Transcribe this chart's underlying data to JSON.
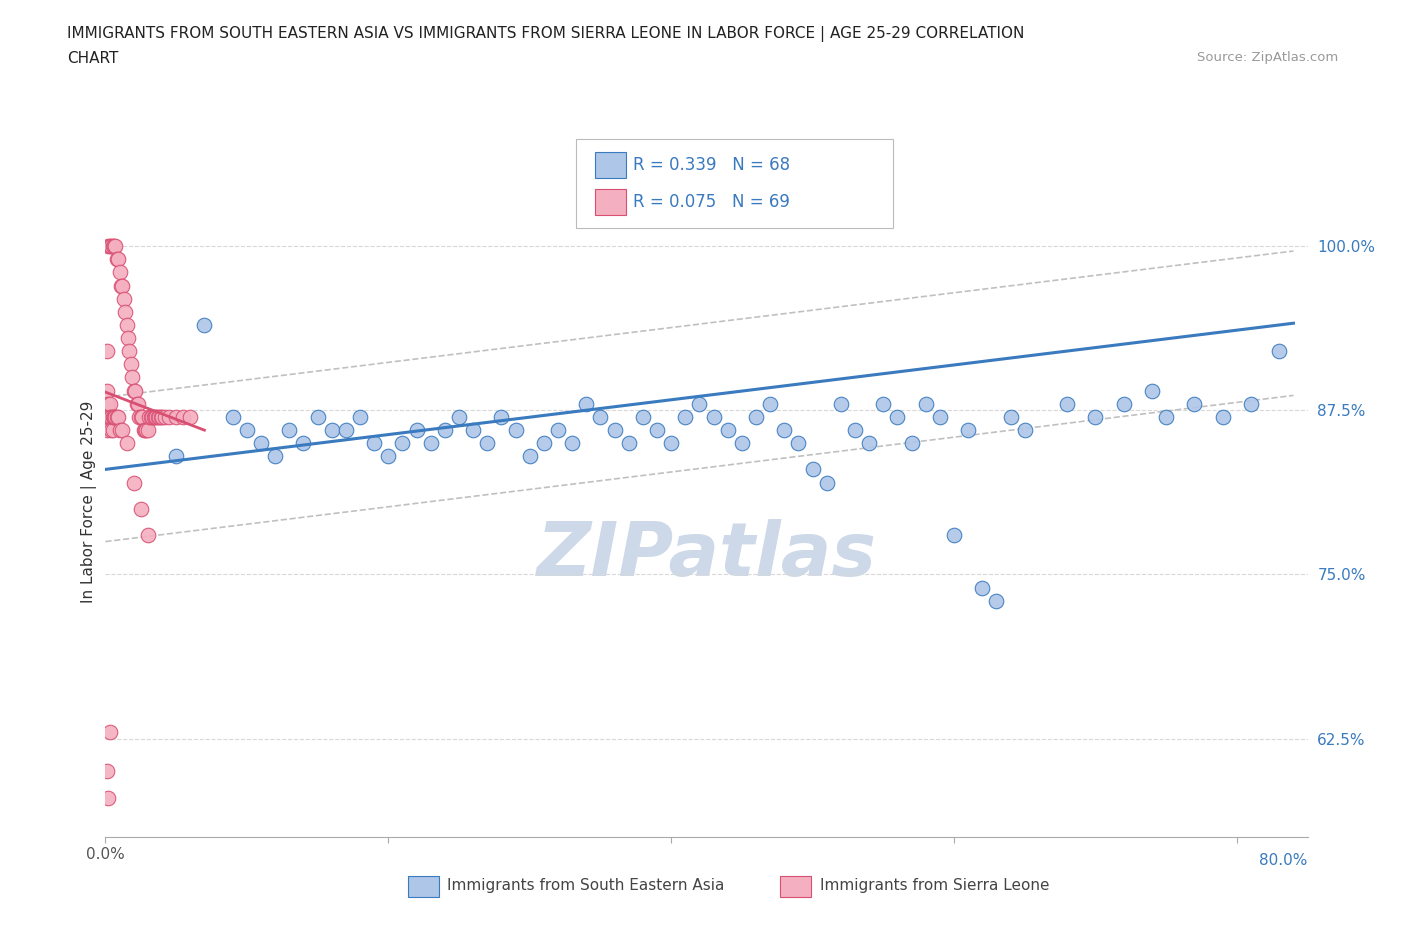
{
  "title_line1": "IMMIGRANTS FROM SOUTH EASTERN ASIA VS IMMIGRANTS FROM SIERRA LEONE IN LABOR FORCE | AGE 25-29 CORRELATION",
  "title_line2": "CHART",
  "source_text": "Source: ZipAtlas.com",
  "ylabel": "In Labor Force | Age 25-29",
  "xlim": [
    0.0,
    0.85
  ],
  "ylim": [
    0.55,
    1.06
  ],
  "r_blue": 0.339,
  "n_blue": 68,
  "r_pink": 0.075,
  "n_pink": 69,
  "blue_color": "#aec6e8",
  "pink_color": "#f4afc0",
  "trendline_blue_color": "#3a7abf",
  "trendline_pink_color": "#d94f72",
  "trendline_dashed_color": "#c0c0c0",
  "legend_box_blue": "#aec6e8",
  "legend_box_pink": "#f4afc0",
  "legend_text_color": "#3a7abf",
  "watermark_color": "#cdd8e8",
  "grid_color": "#d8d8d8",
  "blue_scatter_x": [
    0.05,
    0.07,
    0.09,
    0.1,
    0.11,
    0.12,
    0.13,
    0.14,
    0.15,
    0.16,
    0.17,
    0.18,
    0.19,
    0.2,
    0.21,
    0.22,
    0.23,
    0.24,
    0.25,
    0.26,
    0.27,
    0.28,
    0.29,
    0.3,
    0.31,
    0.32,
    0.33,
    0.34,
    0.35,
    0.36,
    0.37,
    0.38,
    0.39,
    0.4,
    0.41,
    0.42,
    0.43,
    0.44,
    0.45,
    0.46,
    0.47,
    0.48,
    0.49,
    0.5,
    0.51,
    0.52,
    0.53,
    0.54,
    0.55,
    0.56,
    0.57,
    0.58,
    0.59,
    0.6,
    0.61,
    0.62,
    0.63,
    0.64,
    0.65,
    0.68,
    0.7,
    0.72,
    0.74,
    0.75,
    0.77,
    0.79,
    0.81,
    0.83
  ],
  "blue_scatter_y": [
    0.84,
    0.94,
    0.87,
    0.86,
    0.85,
    0.84,
    0.86,
    0.85,
    0.87,
    0.86,
    0.86,
    0.87,
    0.85,
    0.84,
    0.85,
    0.86,
    0.85,
    0.86,
    0.87,
    0.86,
    0.85,
    0.87,
    0.86,
    0.84,
    0.85,
    0.86,
    0.85,
    0.88,
    0.87,
    0.86,
    0.85,
    0.87,
    0.86,
    0.85,
    0.87,
    0.88,
    0.87,
    0.86,
    0.85,
    0.87,
    0.88,
    0.86,
    0.85,
    0.83,
    0.82,
    0.88,
    0.86,
    0.85,
    0.88,
    0.87,
    0.85,
    0.88,
    0.87,
    0.78,
    0.86,
    0.74,
    0.73,
    0.87,
    0.86,
    0.88,
    0.87,
    0.88,
    0.89,
    0.87,
    0.88,
    0.87,
    0.88,
    0.92
  ],
  "pink_scatter_x": [
    0.002,
    0.003,
    0.004,
    0.005,
    0.006,
    0.007,
    0.008,
    0.009,
    0.01,
    0.011,
    0.012,
    0.013,
    0.014,
    0.015,
    0.016,
    0.017,
    0.018,
    0.019,
    0.02,
    0.021,
    0.022,
    0.023,
    0.024,
    0.025,
    0.026,
    0.027,
    0.028,
    0.029,
    0.03,
    0.031,
    0.032,
    0.033,
    0.034,
    0.035,
    0.036,
    0.037,
    0.038,
    0.039,
    0.04,
    0.042,
    0.045,
    0.05,
    0.055,
    0.06,
    0.001,
    0.001,
    0.001,
    0.002,
    0.002,
    0.003,
    0.003,
    0.004,
    0.004,
    0.005,
    0.005,
    0.006,
    0.006,
    0.007,
    0.008,
    0.009,
    0.01,
    0.012,
    0.015,
    0.02,
    0.025,
    0.03,
    0.001,
    0.002,
    0.003
  ],
  "pink_scatter_y": [
    1.0,
    1.0,
    1.0,
    1.0,
    1.0,
    1.0,
    0.99,
    0.99,
    0.98,
    0.97,
    0.97,
    0.96,
    0.95,
    0.94,
    0.93,
    0.92,
    0.91,
    0.9,
    0.89,
    0.89,
    0.88,
    0.88,
    0.87,
    0.87,
    0.87,
    0.86,
    0.86,
    0.86,
    0.86,
    0.87,
    0.87,
    0.87,
    0.87,
    0.87,
    0.87,
    0.87,
    0.87,
    0.87,
    0.87,
    0.87,
    0.87,
    0.87,
    0.87,
    0.87,
    0.92,
    0.89,
    0.86,
    0.88,
    0.87,
    0.88,
    0.87,
    0.87,
    0.86,
    0.86,
    0.87,
    0.87,
    0.87,
    0.87,
    0.87,
    0.87,
    0.86,
    0.86,
    0.85,
    0.82,
    0.8,
    0.78,
    0.6,
    0.58,
    0.63
  ]
}
